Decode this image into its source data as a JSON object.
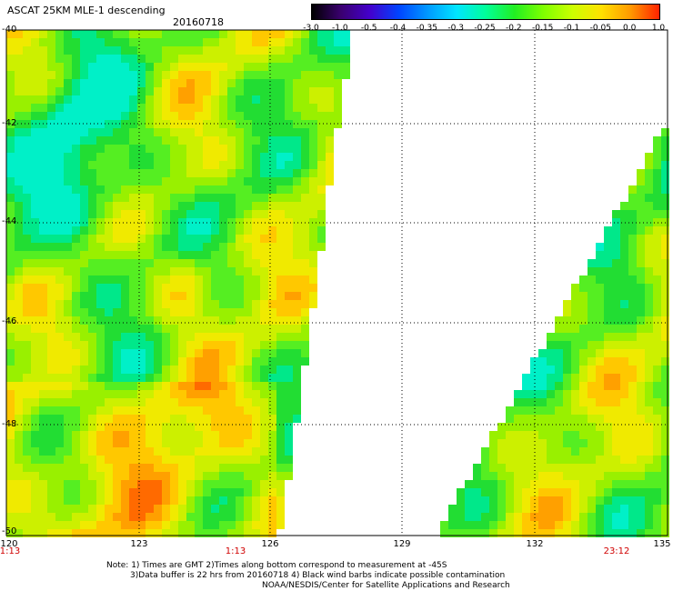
{
  "header": {
    "title": "ASCAT 25KM MLE-1 descending",
    "date": "20160718"
  },
  "colorbar": {
    "ticks": [
      "-3.0",
      "-1.0",
      "-0.5",
      "-0.4",
      "-0.35",
      "-0.3",
      "-0.25",
      "-0.2",
      "-0.15",
      "-0.1",
      "-0.05",
      "0.0",
      "1.0"
    ],
    "colors": [
      "#000000",
      "#3a006f",
      "#4400cc",
      "#0044ff",
      "#0099ff",
      "#00e5ff",
      "#00ff9a",
      "#22ee22",
      "#7fff00",
      "#ccff00",
      "#ffe000",
      "#ff9900",
      "#ff2200"
    ]
  },
  "map": {
    "lat_labels": [
      "-40",
      "-42",
      "-44",
      "-46",
      "-48",
      "-50"
    ],
    "lon_labels": [
      "120",
      "123",
      "126",
      "129",
      "132",
      "135"
    ],
    "time_labels": [
      "1:13",
      "1:13",
      "23:12"
    ],
    "lon_range": [
      120,
      135
    ],
    "lat_range": [
      -40,
      -50
    ]
  },
  "notes": {
    "line1": "Note: 1) Times are GMT 2)Times along bottom correspond to measurement at -45S",
    "line2": "3)Data buffer is 22 hrs from 20160718 4) Black wind barbs indicate possible contamination",
    "line3": "NOAA/NESDIS/Center for Satellite Applications and Research"
  }
}
